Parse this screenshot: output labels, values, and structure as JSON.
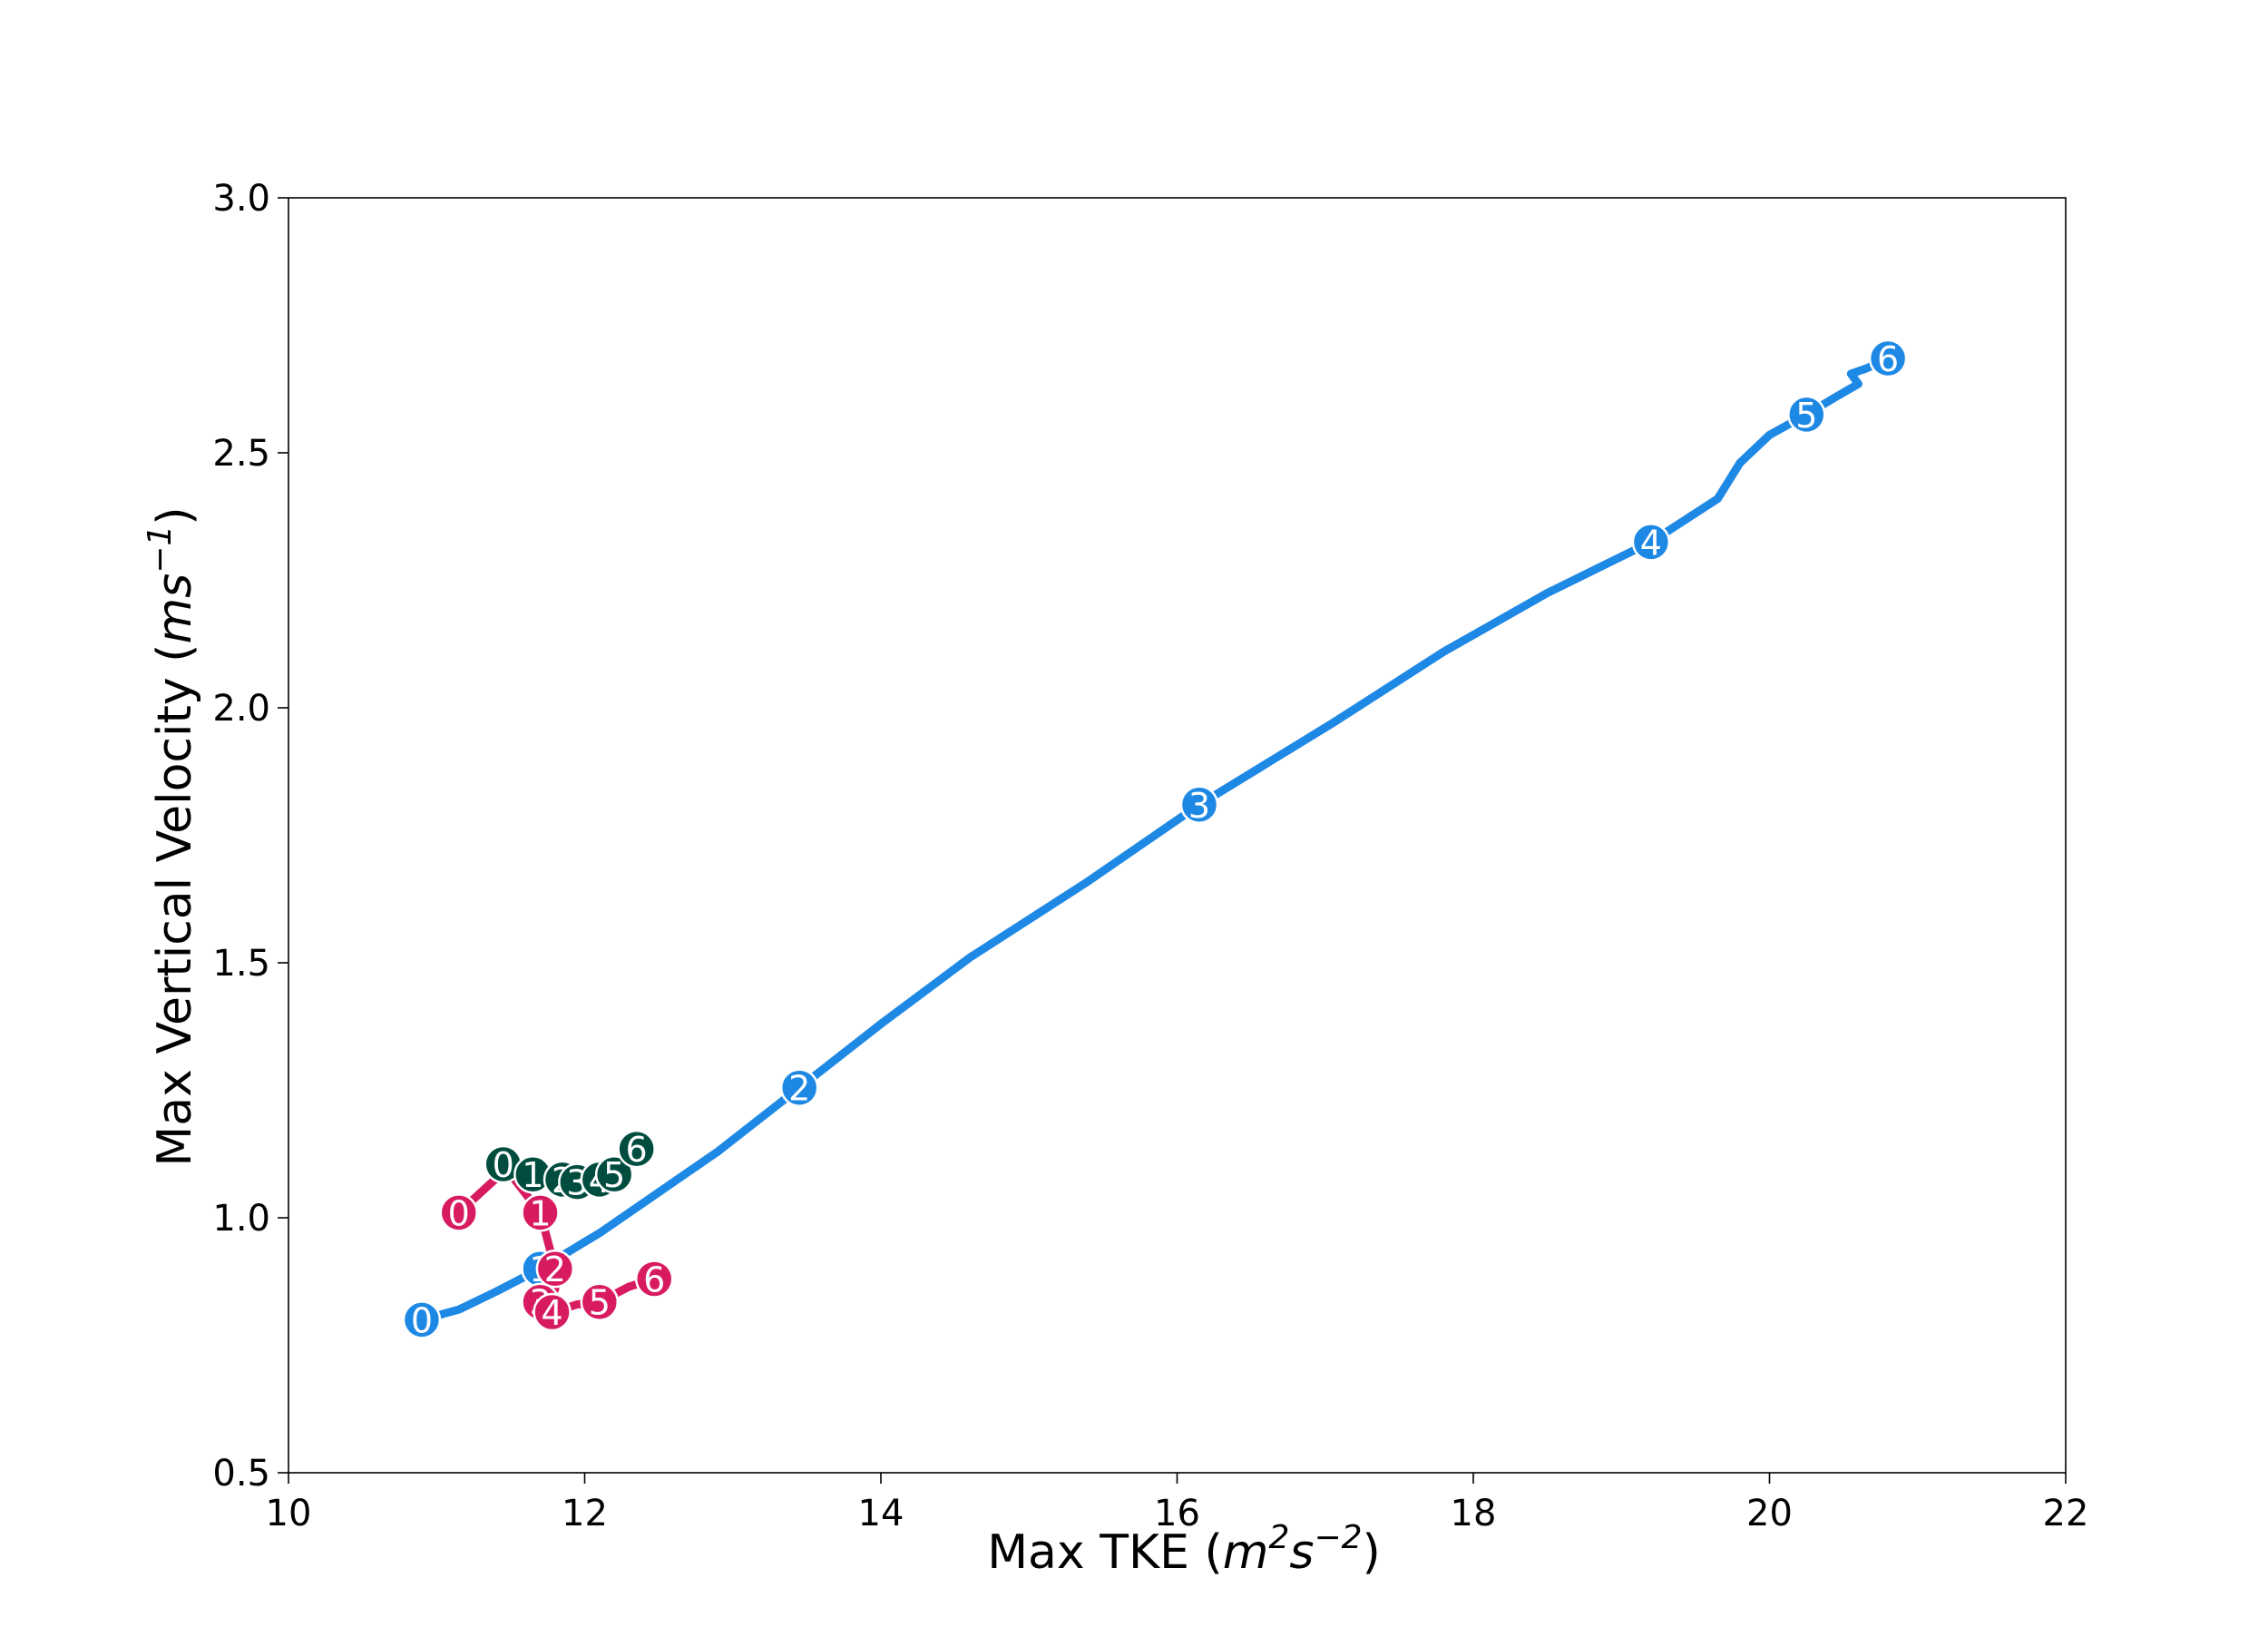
{
  "chart_data": {
    "type": "line",
    "xlabel_main": "Max TKE",
    "xlabel_unit_base": "m",
    "xlabel_unit_exp1": "2",
    "xlabel_unit_mid": "s",
    "xlabel_unit_exp2": "−2",
    "ylabel_main": "Max Vertical Velocity",
    "ylabel_unit_base": "ms",
    "ylabel_unit_exp": "−1",
    "xlim": [
      10,
      22
    ],
    "ylim": [
      0.5,
      3.0
    ],
    "x_ticks": [
      10,
      12,
      14,
      16,
      18,
      20,
      22
    ],
    "x_tick_labels": [
      "10",
      "12",
      "14",
      "16",
      "18",
      "20",
      "22"
    ],
    "y_ticks": [
      0.5,
      1.0,
      1.5,
      2.0,
      2.5,
      3.0
    ],
    "y_tick_labels": [
      "0.5",
      "1.0",
      "1.5",
      "2.0",
      "2.5",
      "3.0"
    ],
    "grid": false,
    "legend": "none",
    "series": [
      {
        "color": "#1e88e5",
        "line": [
          [
            10.9,
            0.8
          ],
          [
            11.15,
            0.82
          ],
          [
            11.4,
            0.855
          ],
          [
            11.7,
            0.9
          ],
          [
            12.1,
            0.97
          ],
          [
            12.5,
            1.05
          ],
          [
            12.9,
            1.13
          ],
          [
            13.45,
            1.255
          ],
          [
            14,
            1.38
          ],
          [
            14.6,
            1.51
          ],
          [
            15.4,
            1.66
          ],
          [
            16.15,
            1.81
          ],
          [
            17.05,
            1.97
          ],
          [
            17.8,
            2.11
          ],
          [
            18.5,
            2.225
          ],
          [
            19.2,
            2.325
          ],
          [
            19.65,
            2.41
          ],
          [
            19.8,
            2.48
          ],
          [
            20,
            2.535
          ],
          [
            20.25,
            2.575
          ],
          [
            20.45,
            2.61
          ],
          [
            20.6,
            2.635
          ],
          [
            20.55,
            2.655
          ],
          [
            20.65,
            2.665
          ],
          [
            20.8,
            2.685
          ]
        ],
        "markers": [
          {
            "label": "0",
            "x": 10.9,
            "y": 0.8
          },
          {
            "label": "1",
            "x": 11.7,
            "y": 0.9
          },
          {
            "label": "2",
            "x": 13.45,
            "y": 1.255
          },
          {
            "label": "3",
            "x": 16.15,
            "y": 1.81
          },
          {
            "label": "4",
            "x": 19.2,
            "y": 2.325
          },
          {
            "label": "5",
            "x": 20.25,
            "y": 2.575
          },
          {
            "label": "6",
            "x": 20.8,
            "y": 2.685
          }
        ]
      },
      {
        "color": "#d81b60",
        "line": [
          [
            11.15,
            1.01
          ],
          [
            11.45,
            1.09
          ],
          [
            11.5,
            1.085
          ],
          [
            11.7,
            1.01
          ],
          [
            11.8,
            0.9
          ],
          [
            11.8,
            0.86
          ],
          [
            11.7,
            0.835
          ],
          [
            11.78,
            0.815
          ],
          [
            11.95,
            0.83
          ],
          [
            12.1,
            0.835
          ],
          [
            12.3,
            0.865
          ],
          [
            12.47,
            0.88
          ]
        ],
        "markers": [
          {
            "label": "0",
            "x": 11.15,
            "y": 1.01
          },
          {
            "label": "1",
            "x": 11.7,
            "y": 1.01
          },
          {
            "label": "2",
            "x": 11.8,
            "y": 0.9
          },
          {
            "label": "3",
            "x": 11.7,
            "y": 0.835
          },
          {
            "label": "4",
            "x": 11.78,
            "y": 0.815
          },
          {
            "label": "5",
            "x": 12.1,
            "y": 0.835
          },
          {
            "label": "6",
            "x": 12.47,
            "y": 0.88
          }
        ]
      },
      {
        "color": "#004d40",
        "line": [
          [
            11.45,
            1.105
          ],
          [
            11.65,
            1.085
          ],
          [
            11.85,
            1.075
          ],
          [
            11.95,
            1.07
          ],
          [
            12.1,
            1.075
          ],
          [
            12.2,
            1.085
          ],
          [
            12.35,
            1.135
          ]
        ],
        "markers": [
          {
            "label": "0",
            "x": 11.45,
            "y": 1.105
          },
          {
            "label": "1",
            "x": 11.65,
            "y": 1.085
          },
          {
            "label": "2",
            "x": 11.85,
            "y": 1.075
          },
          {
            "label": "3",
            "x": 11.95,
            "y": 1.07
          },
          {
            "label": "4",
            "x": 12.1,
            "y": 1.075
          },
          {
            "label": "5",
            "x": 12.2,
            "y": 1.085
          },
          {
            "label": "6",
            "x": 12.35,
            "y": 1.135
          }
        ]
      }
    ]
  }
}
